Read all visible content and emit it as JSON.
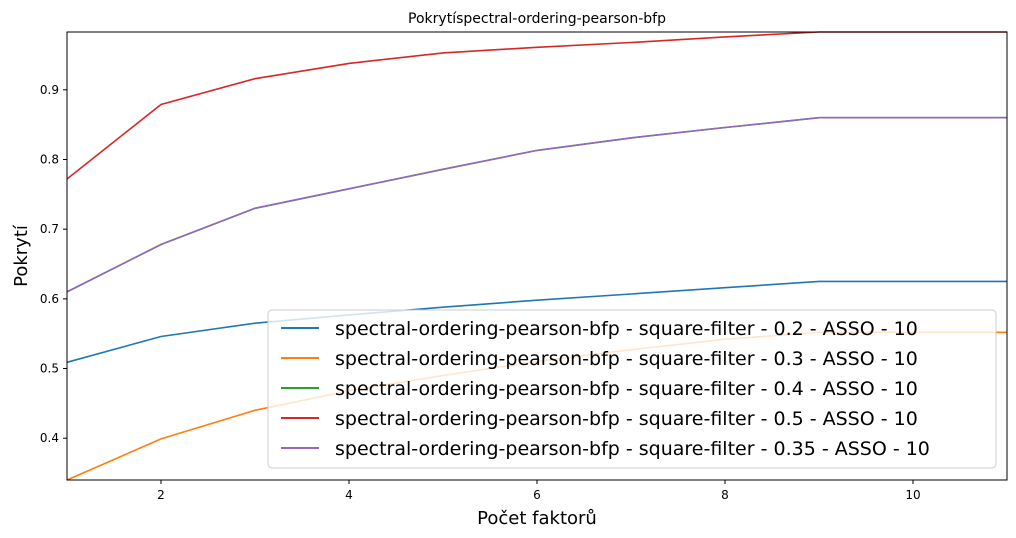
{
  "chart_data": {
    "type": "line",
    "title": "Pokrytíspectral-ordering-pearson-bfp",
    "xlabel": "Počet faktorů",
    "ylabel": "Pokrytí",
    "xlim": [
      1,
      11
    ],
    "ylim": [
      0.34,
      0.983
    ],
    "xticks": [
      2,
      4,
      6,
      8,
      10
    ],
    "xtick_labels": [
      "2",
      "4",
      "6",
      "8",
      "10"
    ],
    "yticks": [
      0.4,
      0.5,
      0.6,
      0.7,
      0.8,
      0.9
    ],
    "ytick_labels": [
      "0.4",
      "0.5",
      "0.6",
      "0.7",
      "0.8",
      "0.9"
    ],
    "grid": false,
    "legend_position": "lower-right",
    "x": [
      1,
      2,
      3,
      4,
      5,
      6,
      7,
      8,
      9,
      10,
      11
    ],
    "series": [
      {
        "name": "spectral-ordering-pearson-bfp - square-filter - 0.2 - ASSO - 10",
        "color": "#1f77b4",
        "values": [
          0.509,
          0.546,
          0.565,
          0.577,
          0.588,
          0.598,
          0.607,
          0.616,
          0.625,
          0.625,
          0.625
        ]
      },
      {
        "name": "spectral-ordering-pearson-bfp - square-filter - 0.3 - ASSO - 10",
        "color": "#ff7f0e",
        "values": [
          0.34,
          0.399,
          0.44,
          0.468,
          0.49,
          0.51,
          0.527,
          0.542,
          0.552,
          0.552,
          0.552
        ]
      },
      {
        "name": "spectral-ordering-pearson-bfp - square-filter - 0.4 - ASSO - 10",
        "color": "#2ca02c",
        "values": [
          0.61,
          0.678,
          0.73,
          0.758,
          0.786,
          0.813,
          0.831,
          0.846,
          0.86,
          0.86,
          0.86
        ]
      },
      {
        "name": "spectral-ordering-pearson-bfp - square-filter - 0.5 - ASSO - 10",
        "color": "#d62728",
        "values": [
          0.772,
          0.879,
          0.916,
          0.938,
          0.953,
          0.961,
          0.968,
          0.976,
          0.983,
          0.983,
          0.983
        ]
      },
      {
        "name": "spectral-ordering-pearson-bfp - square-filter - 0.35 - ASSO - 10",
        "color": "#9467bd",
        "values": [
          0.61,
          0.678,
          0.73,
          0.758,
          0.786,
          0.813,
          0.831,
          0.846,
          0.86,
          0.86,
          0.86
        ]
      }
    ]
  }
}
